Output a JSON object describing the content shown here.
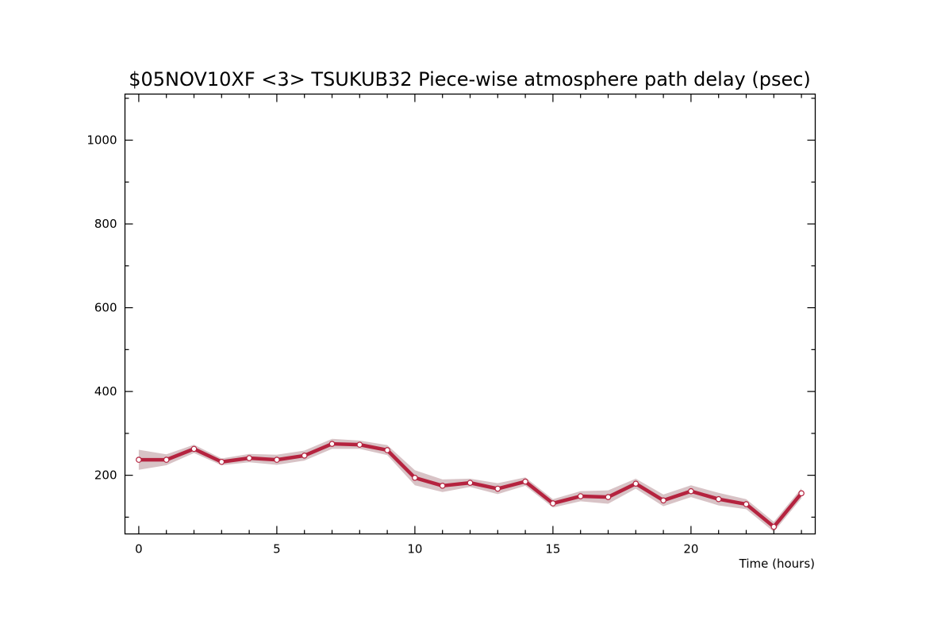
{
  "chart_data": {
    "type": "line",
    "title": "$05NOV10XF <3>  TSUKUB32  Piece-wise atmosphere path delay (psec)",
    "xlabel": "Time (hours)",
    "ylabel": "",
    "xlim": [
      -0.5,
      24.5
    ],
    "ylim": [
      60,
      1110
    ],
    "xticks_major": [
      0,
      5,
      10,
      15,
      20
    ],
    "xticks_minor": [
      1,
      2,
      3,
      4,
      6,
      7,
      8,
      9,
      11,
      12,
      13,
      14,
      16,
      17,
      18,
      19,
      21,
      22,
      23,
      24
    ],
    "yticks_major": [
      200,
      400,
      600,
      800,
      1000
    ],
    "yticks_minor": [
      100,
      300,
      500,
      700,
      900,
      1100
    ],
    "grid": false,
    "colors": {
      "line": "#b5233f",
      "band": "#d8c3c6",
      "marker_fill": "#ffffff",
      "axis": "#000000"
    },
    "series": [
      {
        "x": [
          0,
          1,
          2,
          3,
          4,
          5,
          6,
          7,
          8,
          9,
          10,
          11,
          12,
          13,
          14,
          15,
          16,
          17,
          18,
          19,
          20,
          21,
          22,
          23,
          24
        ],
        "values": [
          237,
          237,
          263,
          232,
          241,
          237,
          247,
          275,
          273,
          260,
          194,
          175,
          182,
          168,
          185,
          133,
          150,
          148,
          180,
          140,
          162,
          143,
          131,
          77,
          157
        ],
        "band_half_width": [
          24,
          13,
          10,
          8,
          10,
          12,
          12,
          12,
          10,
          12,
          18,
          15,
          10,
          13,
          10,
          10,
          12,
          16,
          12,
          14,
          14,
          15,
          12,
          12,
          12
        ]
      }
    ]
  }
}
